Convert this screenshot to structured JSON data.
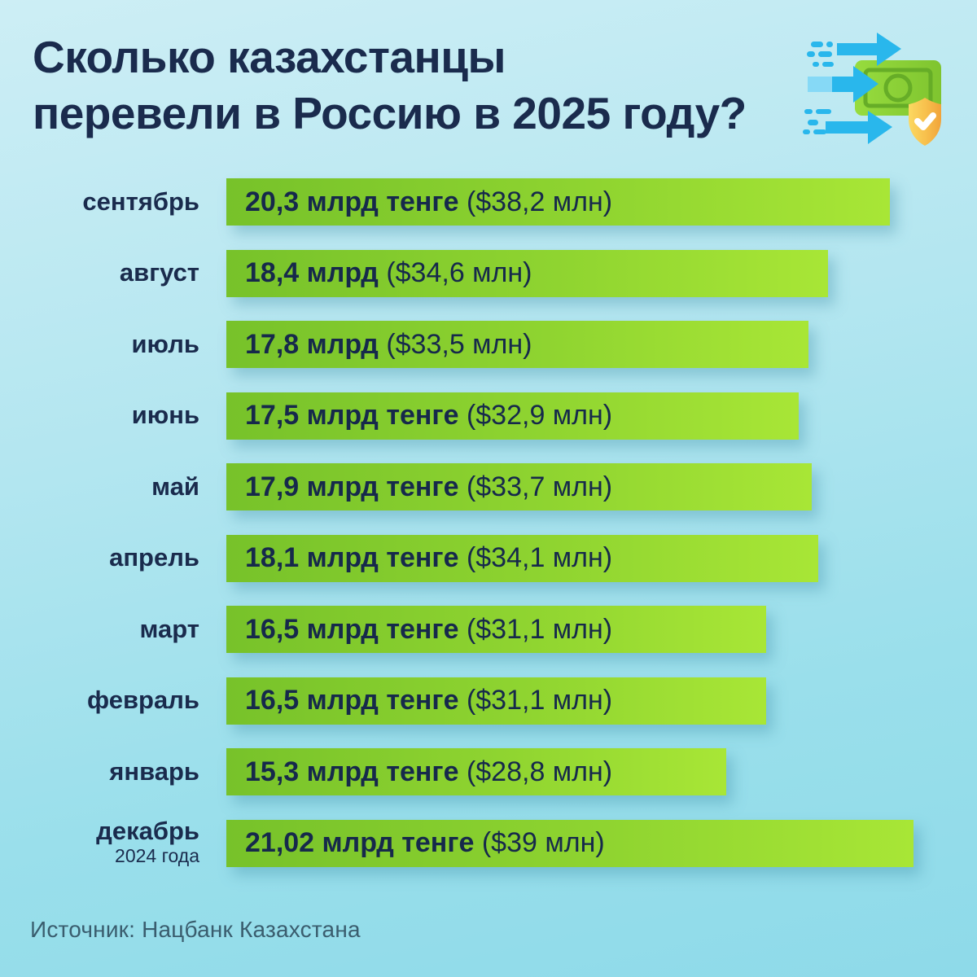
{
  "page": {
    "background_top": "#cdeef5",
    "background_bottom": "#8edae9",
    "accent_navy": "#1a2b4d"
  },
  "header": {
    "title_line1": "Сколько казахстанцы",
    "title_line2": "перевели в Россию в 2025 году?",
    "icon": "money-transfer-icon"
  },
  "chart_data": {
    "type": "bar",
    "orientation": "horizontal",
    "title": "Сколько казахстанцы перевели в Россию в 2025 году?",
    "unit": "млрд тенге",
    "max_value": 21.02,
    "bar_color_left": "#77c22a",
    "bar_color_right": "#a8e636",
    "label_color": "#1a2b4d",
    "legend_position": "none",
    "grid": false,
    "categories": [
      "сентябрь",
      "август",
      "июль",
      "июнь",
      "май",
      "апрель",
      "март",
      "февраль",
      "январь",
      "декабрь"
    ],
    "values": [
      20.3,
      18.4,
      17.8,
      17.5,
      17.9,
      18.1,
      16.5,
      16.5,
      15.3,
      21.02
    ],
    "usd_mln": [
      38.2,
      34.6,
      33.5,
      32.9,
      33.7,
      34.1,
      31.1,
      31.1,
      28.8,
      39
    ],
    "rows": [
      {
        "label": "сентябрь",
        "sublabel": "",
        "value": 20.3,
        "value_bold": "20,3 млрд тенге",
        "value_rest": " ($38,2 млн)"
      },
      {
        "label": "август",
        "sublabel": "",
        "value": 18.4,
        "value_bold": "18,4 млрд",
        "value_rest": " ($34,6 млн)"
      },
      {
        "label": "июль",
        "sublabel": "",
        "value": 17.8,
        "value_bold": "17,8 млрд",
        "value_rest": " ($33,5 млн)"
      },
      {
        "label": "июнь",
        "sublabel": "",
        "value": 17.5,
        "value_bold": "17,5 млрд тенге",
        "value_rest": " ($32,9 млн)"
      },
      {
        "label": "май",
        "sublabel": "",
        "value": 17.9,
        "value_bold": "17,9 млрд тенге",
        "value_rest": " ($33,7 млн)"
      },
      {
        "label": "апрель",
        "sublabel": "",
        "value": 18.1,
        "value_bold": "18,1 млрд тенге",
        "value_rest": " ($34,1 млн)"
      },
      {
        "label": "март",
        "sublabel": "",
        "value": 16.5,
        "value_bold": "16,5 млрд тенге",
        "value_rest": " ($31,1 млн)"
      },
      {
        "label": "февраль",
        "sublabel": "",
        "value": 16.5,
        "value_bold": "16,5 млрд тенге",
        "value_rest": " ($31,1 млн)"
      },
      {
        "label": "январь",
        "sublabel": "",
        "value": 15.3,
        "value_bold": "15,3 млрд тенге",
        "value_rest": " ($28,8 млн)"
      },
      {
        "label": "декабрь",
        "sublabel": "2024 года",
        "value": 21.02,
        "value_bold": "21,02 млрд тенге",
        "value_rest": " ($39 млн)"
      }
    ]
  },
  "footer": {
    "source": "Источник: Нацбанк Казахстана"
  }
}
